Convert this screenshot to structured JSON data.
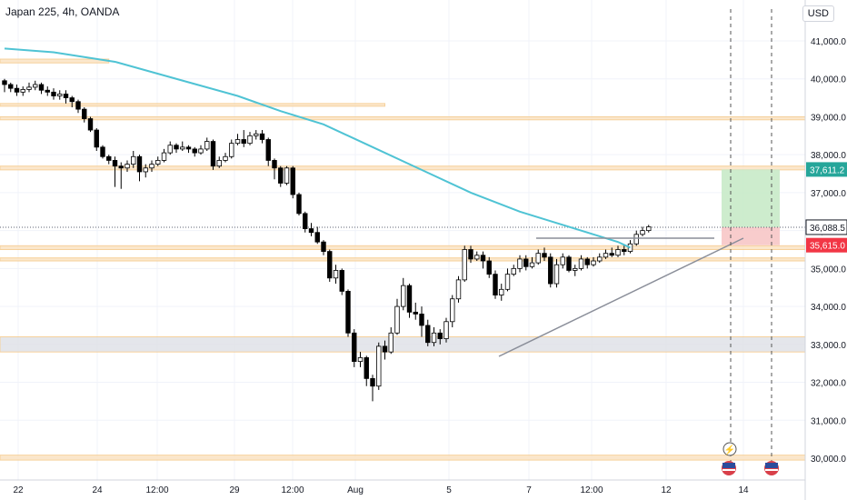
{
  "header": {
    "symbol": "Japan 225",
    "interval": "4h",
    "broker": "OANDA",
    "currency": "USD"
  },
  "chart_data": {
    "type": "candlestick",
    "xlabel": "",
    "ylabel": "",
    "ylim": [
      29500,
      41600
    ],
    "y_ticks": [
      30000,
      31000,
      32000,
      33000,
      34000,
      35000,
      36000,
      37000,
      38000,
      39000,
      40000,
      41000
    ],
    "y_tick_labels": [
      "30,000.0",
      "31,000.0",
      "32,000.0",
      "33,000.0",
      "34,000.0",
      "35,000.0",
      "36,000.0",
      "37,000.0",
      "38,000.0",
      "39,000.0",
      "40,000.0",
      "41,000.0"
    ],
    "x_tick_labels": [
      "22",
      "24",
      "12:00",
      "29",
      "12:00",
      "Aug",
      "5",
      "7",
      "12:00",
      "12",
      "14"
    ],
    "price_labels": [
      {
        "value": 37611.2,
        "text": "37,611.2",
        "color": "#26a69a"
      },
      {
        "value": 36088.5,
        "text": "36,088.5",
        "color": "#131722"
      },
      {
        "value": 35615.0,
        "text": "35,615.0",
        "color": "#f23645"
      }
    ],
    "candles": [
      [
        39950,
        39850,
        40000,
        39650
      ],
      [
        39850,
        39750,
        39900,
        39650
      ],
      [
        39750,
        39650,
        39850,
        39550
      ],
      [
        39650,
        39720,
        39800,
        39550
      ],
      [
        39720,
        39780,
        39900,
        39650
      ],
      [
        39780,
        39850,
        39950,
        39700
      ],
      [
        39850,
        39700,
        39900,
        39600
      ],
      [
        39700,
        39650,
        39800,
        39550
      ],
      [
        39650,
        39550,
        39750,
        39450
      ],
      [
        39550,
        39600,
        39700,
        39450
      ],
      [
        39600,
        39500,
        39700,
        39350
      ],
      [
        39500,
        39400,
        39550,
        39250
      ],
      [
        39400,
        39200,
        39450,
        39100
      ],
      [
        39200,
        38950,
        39250,
        38850
      ],
      [
        38950,
        38650,
        39000,
        38600
      ],
      [
        38650,
        38200,
        38700,
        38100
      ],
      [
        38200,
        37950,
        38250,
        37900
      ],
      [
        37950,
        37850,
        38000,
        37750
      ],
      [
        37850,
        37700,
        37950,
        37150
      ],
      [
        37700,
        37650,
        37800,
        37100
      ],
      [
        37650,
        37750,
        37850,
        37550
      ],
      [
        37750,
        37950,
        38100,
        37650
      ],
      [
        37950,
        37550,
        38000,
        37300
      ],
      [
        37550,
        37650,
        37750,
        37400
      ],
      [
        37650,
        37750,
        37850,
        37550
      ],
      [
        37750,
        37850,
        37950,
        37700
      ],
      [
        37850,
        38050,
        38150,
        37800
      ],
      [
        38050,
        38250,
        38350,
        38000
      ],
      [
        38250,
        38150,
        38300,
        38050
      ],
      [
        38150,
        38200,
        38350,
        38100
      ],
      [
        38200,
        38150,
        38250,
        38050
      ],
      [
        38150,
        38050,
        38200,
        37950
      ],
      [
        38050,
        38150,
        38250,
        38000
      ],
      [
        38150,
        38350,
        38450,
        38100
      ],
      [
        38350,
        37700,
        38400,
        37600
      ],
      [
        37700,
        37850,
        37950,
        37650
      ],
      [
        37850,
        37950,
        38050,
        37800
      ],
      [
        37950,
        38300,
        38400,
        37900
      ],
      [
        38300,
        38400,
        38550,
        38250
      ],
      [
        38400,
        38300,
        38650,
        38200
      ],
      [
        38300,
        38500,
        38600,
        38250
      ],
      [
        38500,
        38550,
        38650,
        38400
      ],
      [
        38550,
        38400,
        38650,
        38300
      ],
      [
        38400,
        37850,
        38450,
        37700
      ],
      [
        37850,
        37650,
        37900,
        37350
      ],
      [
        37650,
        37250,
        37700,
        37150
      ],
      [
        37250,
        37650,
        37700,
        37200
      ],
      [
        37650,
        36950,
        37700,
        36850
      ],
      [
        36950,
        36450,
        37000,
        36400
      ],
      [
        36450,
        36050,
        36500,
        35950
      ],
      [
        36050,
        35950,
        36200,
        35850
      ],
      [
        35950,
        35700,
        36100,
        35650
      ],
      [
        35700,
        35450,
        35750,
        35350
      ],
      [
        35450,
        34750,
        35500,
        34650
      ],
      [
        34750,
        34950,
        35100,
        34600
      ],
      [
        34950,
        34400,
        35000,
        34300
      ],
      [
        34400,
        33300,
        34450,
        33200
      ],
      [
        33300,
        32550,
        33400,
        32400
      ],
      [
        32550,
        32650,
        32800,
        32400
      ],
      [
        32650,
        32100,
        32700,
        31900
      ],
      [
        32100,
        31900,
        32200,
        31500
      ],
      [
        31900,
        32950,
        33050,
        31800
      ],
      [
        32950,
        32800,
        33100,
        32600
      ],
      [
        32800,
        33300,
        33450,
        32750
      ],
      [
        33300,
        34000,
        34200,
        33250
      ],
      [
        34000,
        34550,
        34750,
        33900
      ],
      [
        34550,
        33850,
        34600,
        33700
      ],
      [
        33850,
        33800,
        34100,
        33650
      ],
      [
        33800,
        33500,
        34000,
        33200
      ],
      [
        33500,
        33050,
        33650,
        32950
      ],
      [
        33050,
        33300,
        33450,
        32950
      ],
      [
        33300,
        33150,
        33400,
        33000
      ],
      [
        33150,
        33600,
        33700,
        33050
      ],
      [
        33600,
        34200,
        34300,
        33450
      ],
      [
        34200,
        34700,
        34800,
        34100
      ],
      [
        34700,
        35500,
        35600,
        34650
      ],
      [
        35500,
        35250,
        35600,
        35150
      ],
      [
        35250,
        35350,
        35450,
        35200
      ],
      [
        35350,
        35200,
        35450,
        35000
      ],
      [
        35200,
        34850,
        35300,
        34750
      ],
      [
        34850,
        34300,
        34950,
        34200
      ],
      [
        34300,
        34450,
        34600,
        34150
      ],
      [
        34450,
        34850,
        35000,
        34400
      ],
      [
        34850,
        35000,
        35100,
        34800
      ],
      [
        35000,
        35250,
        35350,
        34900
      ],
      [
        35250,
        35050,
        35350,
        34950
      ],
      [
        35050,
        35150,
        35300,
        35000
      ],
      [
        35150,
        35400,
        35500,
        35100
      ],
      [
        35400,
        35300,
        35550,
        35200
      ],
      [
        35300,
        34600,
        35400,
        34500
      ],
      [
        34600,
        35100,
        35250,
        34500
      ],
      [
        35100,
        35300,
        35400,
        35000
      ],
      [
        35300,
        34950,
        35350,
        34900
      ],
      [
        34950,
        35000,
        35100,
        34800
      ],
      [
        35000,
        35250,
        35350,
        34950
      ],
      [
        35250,
        35100,
        35300,
        35000
      ],
      [
        35100,
        35200,
        35300,
        35050
      ],
      [
        35200,
        35300,
        35400,
        35150
      ],
      [
        35300,
        35400,
        35500,
        35250
      ],
      [
        35400,
        35350,
        35550,
        35300
      ],
      [
        35350,
        35500,
        35600,
        35300
      ],
      [
        35500,
        35450,
        35600,
        35350
      ],
      [
        35450,
        35650,
        35750,
        35400
      ],
      [
        35650,
        35900,
        36000,
        35600
      ],
      [
        35900,
        36000,
        36100,
        35850
      ],
      [
        36000,
        36100,
        36150,
        35950
      ]
    ],
    "moving_average": [
      [
        0,
        40800
      ],
      [
        8,
        40700
      ],
      [
        18,
        40450
      ],
      [
        28,
        40000
      ],
      [
        38,
        39550
      ],
      [
        45,
        39150
      ],
      [
        52,
        38800
      ],
      [
        60,
        38200
      ],
      [
        68,
        37600
      ],
      [
        76,
        37000
      ],
      [
        84,
        36500
      ],
      [
        90,
        36200
      ],
      [
        96,
        35900
      ],
      [
        100,
        35700
      ],
      [
        102,
        35550
      ]
    ],
    "horizontal_zones": [
      {
        "low": 40420,
        "high": 40520,
        "from": 0,
        "to": 17
      },
      {
        "low": 39280,
        "high": 39350,
        "from": 0,
        "to": 62
      },
      {
        "low": 38920,
        "high": 39000,
        "from": 0,
        "to": 120
      },
      {
        "low": 37600,
        "high": 37700,
        "from": 0,
        "to": 120
      },
      {
        "low": 35500,
        "high": 35600,
        "from": 0,
        "to": 120
      },
      {
        "low": 35200,
        "high": 35280,
        "from": 0,
        "to": 120
      },
      {
        "low": 32800,
        "high": 33200,
        "from": 0,
        "to": 120
      },
      {
        "low": 29950,
        "high": 30080,
        "from": 0,
        "to": 120
      }
    ],
    "trade_box": {
      "entry": 36088.5,
      "target": 37611.2,
      "stop": 35615.0
    }
  },
  "colors": {
    "up": "#ffffff",
    "down": "#000000",
    "ma": "#4fc3d4",
    "zone": "#f5c98a",
    "profit": "#c8eac8",
    "loss": "#f7c7c7"
  },
  "icons": [
    "lightning-icon",
    "us-flag-icon"
  ]
}
